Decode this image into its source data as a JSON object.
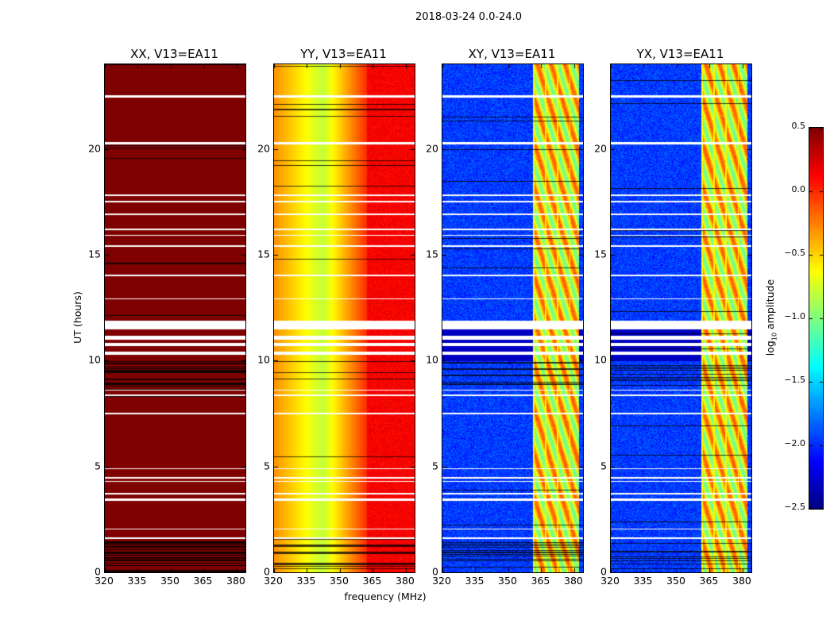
{
  "chart_data": {
    "type": "heatmap",
    "title": "2018-03-24 0.0-24.0",
    "xlabel": "frequency (MHz)",
    "ylabel": "UT (hours)",
    "xlim": [
      320,
      384
    ],
    "ylim": [
      0,
      24
    ],
    "xticks": [
      "320",
      "335",
      "350",
      "365",
      "380"
    ],
    "yticks": [
      "0",
      "5",
      "10",
      "15",
      "20"
    ],
    "panels": [
      {
        "title": "XX, V13=EA11",
        "pol": "XX"
      },
      {
        "title": "YY, V13=EA11",
        "pol": "YY"
      },
      {
        "title": "XY, V13=EA11",
        "pol": "XY"
      },
      {
        "title": "YX, V13=EA11",
        "pol": "YX"
      }
    ],
    "flagged_hours": [
      [
        22.45,
        22.55
      ],
      [
        20.25,
        20.35
      ],
      [
        17.8,
        17.85
      ],
      [
        17.5,
        17.55
      ],
      [
        16.9,
        16.95
      ],
      [
        16.2,
        16.25
      ],
      [
        15.9,
        15.95
      ],
      [
        15.4,
        15.45
      ],
      [
        14.0,
        14.1
      ],
      [
        12.9,
        12.95
      ],
      [
        11.5,
        11.9
      ],
      [
        11.0,
        11.2
      ],
      [
        10.7,
        10.85
      ],
      [
        10.3,
        10.45
      ],
      [
        8.6,
        8.65
      ],
      [
        8.35,
        8.4
      ],
      [
        7.5,
        7.55
      ],
      [
        4.9,
        4.95
      ],
      [
        4.45,
        4.5
      ],
      [
        4.3,
        4.35
      ],
      [
        3.7,
        3.75
      ],
      [
        3.4,
        3.5
      ],
      [
        2.05,
        2.1
      ],
      [
        1.6,
        1.65
      ]
    ],
    "rfi_band_mhz": [
      361,
      382
    ],
    "colorbar": {
      "label": "log10 amplitude",
      "range": [
        -2.5,
        0.5
      ],
      "ticks": [
        "0.5",
        "0.0",
        "−0.5",
        "−1.0",
        "−1.5",
        "−2.0",
        "−2.5"
      ],
      "colormap": "jet"
    }
  }
}
